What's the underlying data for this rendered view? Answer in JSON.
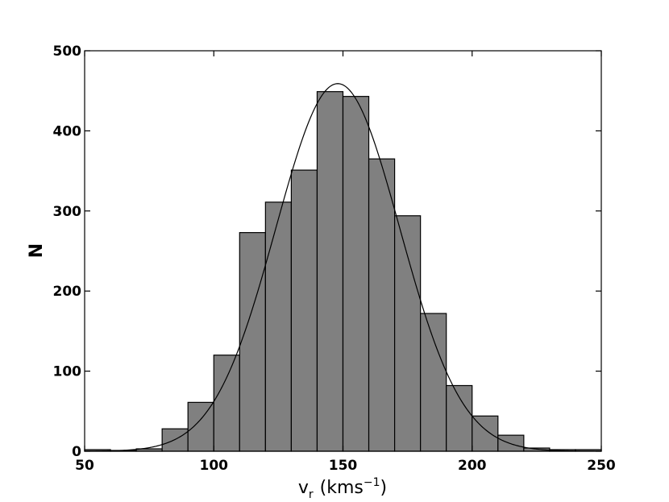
{
  "chart_data": {
    "type": "bar",
    "xlabel_main": "v",
    "xlabel_sub": "r",
    "xlabel_unit_open": "(kms",
    "xlabel_unit_exp": "−1",
    "xlabel_unit_close": ")",
    "ylabel": "N",
    "xlim": [
      50,
      250
    ],
    "ylim": [
      0,
      500
    ],
    "xticks": [
      50,
      100,
      150,
      200,
      250
    ],
    "yticks": [
      0,
      100,
      200,
      300,
      400,
      500
    ],
    "xtick_labels": [
      "50",
      "100",
      "150",
      "200",
      "250"
    ],
    "ytick_labels": [
      "0",
      "100",
      "200",
      "300",
      "400",
      "500"
    ],
    "bin_width": 10,
    "bins": [
      {
        "x0": 50,
        "value": 2
      },
      {
        "x0": 60,
        "value": 1
      },
      {
        "x0": 70,
        "value": 3
      },
      {
        "x0": 80,
        "value": 28
      },
      {
        "x0": 90,
        "value": 61
      },
      {
        "x0": 100,
        "value": 120
      },
      {
        "x0": 110,
        "value": 273
      },
      {
        "x0": 120,
        "value": 311
      },
      {
        "x0": 130,
        "value": 351
      },
      {
        "x0": 140,
        "value": 449
      },
      {
        "x0": 150,
        "value": 443
      },
      {
        "x0": 160,
        "value": 365
      },
      {
        "x0": 170,
        "value": 294
      },
      {
        "x0": 180,
        "value": 172
      },
      {
        "x0": 190,
        "value": 82
      },
      {
        "x0": 200,
        "value": 44
      },
      {
        "x0": 210,
        "value": 20
      },
      {
        "x0": 220,
        "value": 4
      },
      {
        "x0": 230,
        "value": 2
      },
      {
        "x0": 240,
        "value": 2
      }
    ],
    "fit_curve": {
      "type": "gaussian",
      "amplitude": 459,
      "mean": 148,
      "sigma": 24
    },
    "grid": false,
    "colors": {
      "bar_fill": "#808080",
      "bar_edge": "#000000",
      "curve": "#000000"
    }
  }
}
